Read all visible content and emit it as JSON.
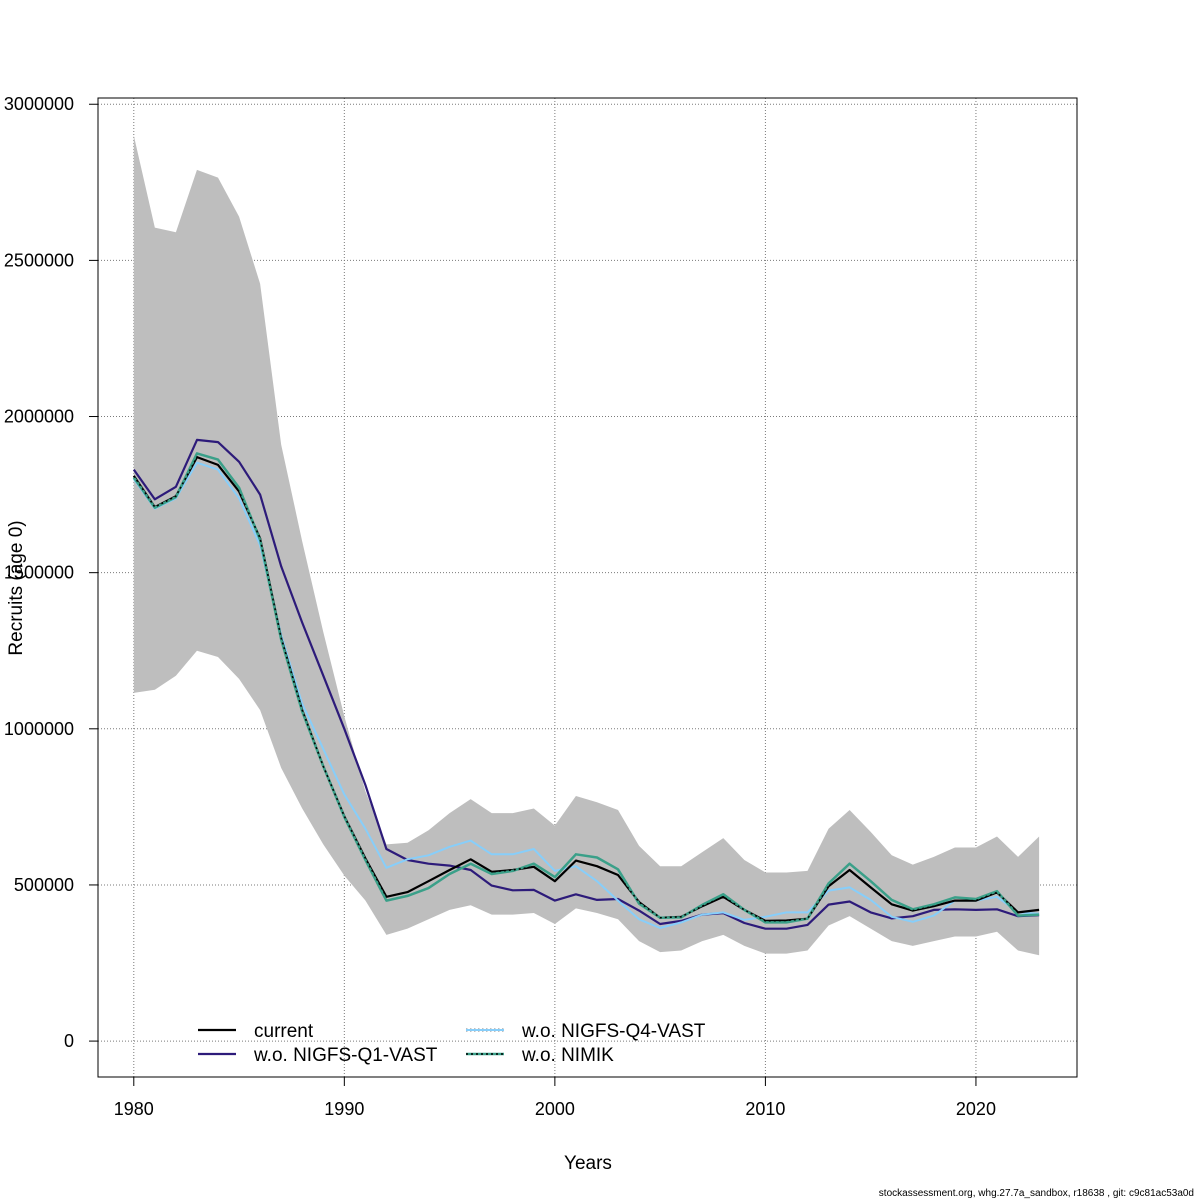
{
  "chart_data": {
    "type": "line",
    "title": "",
    "xlabel": "Years",
    "ylabel": "Recruits (age 0)",
    "xlim": [
      1978.3,
      1024.8
    ],
    "ylim": [
      -115000,
      3020000
    ],
    "x_ticks": [
      1980,
      1990,
      2000,
      2010,
      2020
    ],
    "y_ticks": [
      0,
      500000,
      1000000,
      1500000,
      2000000,
      2500000,
      3000000
    ],
    "grid": true,
    "legend_position": "bottom-left",
    "x": [
      1980,
      1981,
      1982,
      1983,
      1984,
      1985,
      1986,
      1987,
      1988,
      1989,
      1990,
      1991,
      1992,
      1993,
      1994,
      1995,
      1996,
      1997,
      1998,
      1999,
      2000,
      2001,
      2002,
      2003,
      2004,
      2005,
      2006,
      2007,
      2008,
      2009,
      2010,
      2011,
      2012,
      2013,
      2014,
      2015,
      2016,
      2017,
      2018,
      2019,
      2020,
      2021,
      2022,
      2023
    ],
    "confidence_band": {
      "color": "#bebebe",
      "upper": [
        2900000,
        2605000,
        2590000,
        2790000,
        2765000,
        2640000,
        2425000,
        1910000,
        1600000,
        1310000,
        1040000,
        800000,
        630000,
        635000,
        675000,
        730000,
        775000,
        730000,
        730000,
        745000,
        690000,
        785000,
        765000,
        740000,
        625000,
        560000,
        560000,
        605000,
        650000,
        580000,
        540000,
        540000,
        545000,
        680000,
        740000,
        670000,
        595000,
        565000,
        590000,
        620000,
        620000,
        655000,
        590000,
        655000
      ],
      "lower": [
        1115000,
        1125000,
        1170000,
        1250000,
        1230000,
        1160000,
        1060000,
        875000,
        745000,
        630000,
        530000,
        450000,
        340000,
        360000,
        390000,
        420000,
        435000,
        405000,
        405000,
        410000,
        375000,
        425000,
        410000,
        390000,
        320000,
        285000,
        290000,
        320000,
        340000,
        305000,
        280000,
        280000,
        290000,
        370000,
        400000,
        360000,
        320000,
        305000,
        320000,
        335000,
        335000,
        350000,
        290000,
        275000
      ]
    },
    "series": [
      {
        "name": "current",
        "color": "#000000",
        "dash": "solid",
        "values": [
          1810000,
          1710000,
          1745000,
          1870000,
          1845000,
          1760000,
          1610000,
          1290000,
          1060000,
          880000,
          720000,
          585000,
          462000,
          477000,
          512000,
          548000,
          582000,
          542000,
          548000,
          558000,
          512000,
          578000,
          560000,
          532000,
          445000,
          395000,
          398000,
          432000,
          462000,
          420000,
          385000,
          386000,
          392000,
          496000,
          548000,
          492000,
          438000,
          418000,
          432000,
          450000,
          450000,
          476000,
          412000,
          420000
        ]
      },
      {
        "name": "w.o. NIGFS-Q1-VAST",
        "color": "#2d1b7a",
        "dash": "solid",
        "values": [
          1830000,
          1735000,
          1775000,
          1925000,
          1918000,
          1855000,
          1750000,
          1520000,
          1340000,
          1170000,
          1000000,
          820000,
          615000,
          580000,
          568000,
          562000,
          548000,
          498000,
          483000,
          484000,
          450000,
          470000,
          452000,
          455000,
          418000,
          375000,
          385000,
          405000,
          410000,
          378000,
          360000,
          360000,
          372000,
          437000,
          447000,
          412000,
          393000,
          400000,
          420000,
          422000,
          420000,
          422000,
          400000,
          403000
        ]
      },
      {
        "name": "w.o. NIGFS-Q4-VAST",
        "color": "#87cefa",
        "dash": "dotted",
        "values": [
          1800000,
          1705000,
          1738000,
          1852000,
          1830000,
          1738000,
          1588000,
          1300000,
          1080000,
          935000,
          790000,
          680000,
          555000,
          582000,
          595000,
          622000,
          642000,
          598000,
          598000,
          615000,
          545000,
          560000,
          512000,
          450000,
          390000,
          362000,
          380000,
          405000,
          412000,
          388000,
          398000,
          412000,
          412000,
          482000,
          492000,
          452000,
          398000,
          382000,
          402000,
          450000,
          450000,
          462000,
          412000,
          408000
        ]
      },
      {
        "name": "w.o. NIMIK",
        "color": "#3aa089",
        "dash": "solid",
        "values": [
          1805000,
          1708000,
          1742000,
          1882000,
          1862000,
          1772000,
          1605000,
          1285000,
          1055000,
          880000,
          718000,
          580000,
          450000,
          465000,
          490000,
          535000,
          568000,
          535000,
          545000,
          568000,
          525000,
          598000,
          588000,
          550000,
          440000,
          395000,
          396000,
          436000,
          470000,
          420000,
          380000,
          380000,
          392000,
          505000,
          568000,
          512000,
          452000,
          422000,
          438000,
          460000,
          455000,
          480000,
          402000,
          405000
        ]
      }
    ]
  },
  "footer": "stockassessment.org, whg.27.7a_sandbox, r18638 , git: c9c81ac53a0d"
}
